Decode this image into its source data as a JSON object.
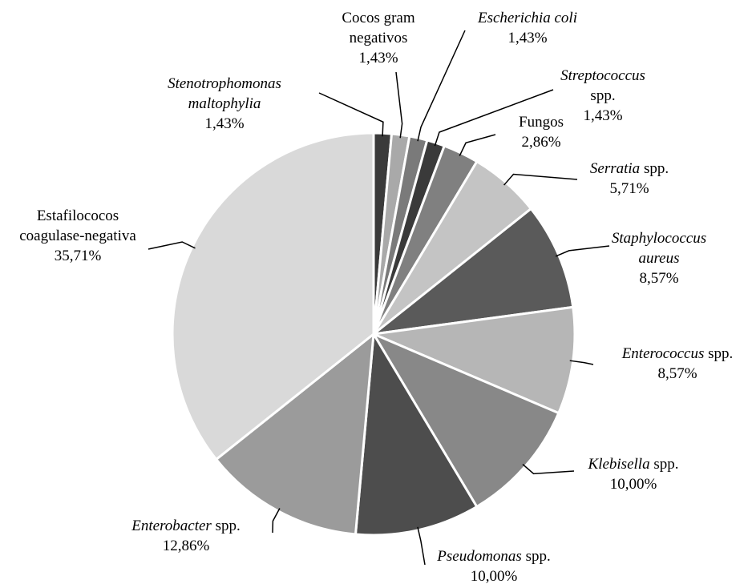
{
  "chart_data": {
    "type": "pie",
    "categories": [
      "Stenotrophomonas maltophylia",
      "Cocos gram negativos",
      "Escherichia coli",
      "Streptococcus spp.",
      "Fungos",
      "Serratia spp.",
      "Staphylococcus aureus",
      "Enterococcus spp.",
      "Klebisella spp.",
      "Pseudomonas spp.",
      "Enterobacter spp.",
      "Estafilococos coagulase-negativa"
    ],
    "values": [
      1.43,
      1.43,
      1.43,
      1.43,
      2.86,
      5.71,
      8.57,
      8.57,
      10.0,
      10.0,
      12.86,
      35.71
    ],
    "value_labels": [
      "1,43%",
      "1,43%",
      "1,43%",
      "1,43%",
      "2,86%",
      "5,71%",
      "8,57%",
      "8,57%",
      "10,00%",
      "10,00%",
      "12,86%",
      "35,71%"
    ],
    "colors": [
      "#3a3a3a",
      "#a9a9a9",
      "#7a7a7a",
      "#3a3a3a",
      "#808080",
      "#c4c4c4",
      "#5a5a5a",
      "#b6b6b6",
      "#888888",
      "#4d4d4d",
      "#9b9b9b",
      "#d9d9d9"
    ]
  }
}
